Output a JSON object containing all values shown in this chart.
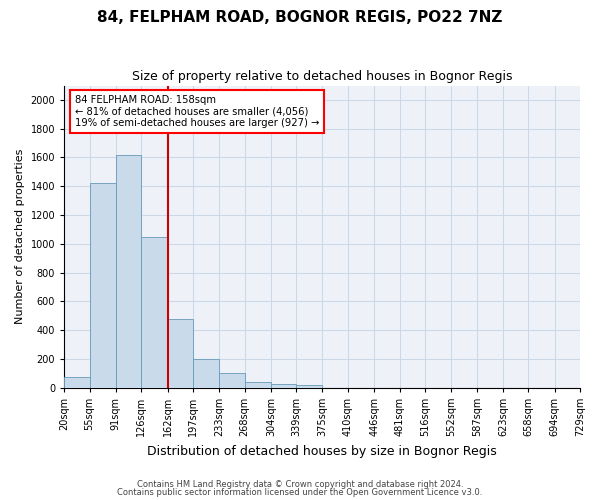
{
  "title": "84, FELPHAM ROAD, BOGNOR REGIS, PO22 7NZ",
  "subtitle": "Size of property relative to detached houses in Bognor Regis",
  "xlabel": "Distribution of detached houses by size in Bognor Regis",
  "ylabel": "Number of detached properties",
  "footnote1": "Contains HM Land Registry data © Crown copyright and database right 2024.",
  "footnote2": "Contains public sector information licensed under the Open Government Licence v3.0.",
  "annotation_line1": "84 FELPHAM ROAD: 158sqm",
  "annotation_line2": "← 81% of detached houses are smaller (4,056)",
  "annotation_line3": "19% of semi-detached houses are larger (927) →",
  "bins": [
    20,
    55,
    91,
    126,
    162,
    197,
    233,
    268,
    304,
    339,
    375,
    410,
    446,
    481,
    516,
    552,
    587,
    623,
    658,
    694,
    729
  ],
  "bin_labels": [
    "20sqm",
    "55sqm",
    "91sqm",
    "126sqm",
    "162sqm",
    "197sqm",
    "233sqm",
    "268sqm",
    "304sqm",
    "339sqm",
    "375sqm",
    "410sqm",
    "446sqm",
    "481sqm",
    "516sqm",
    "552sqm",
    "587sqm",
    "623sqm",
    "658sqm",
    "694sqm",
    "729sqm"
  ],
  "counts": [
    75,
    1420,
    1620,
    1050,
    480,
    200,
    100,
    40,
    25,
    20,
    0,
    0,
    0,
    0,
    0,
    0,
    0,
    0,
    0,
    0
  ],
  "bar_color": "#c9daea",
  "bar_edge_color": "#6699bb",
  "vline_color": "#cc0000",
  "vline_x": 162,
  "ylim": [
    0,
    2100
  ],
  "yticks": [
    0,
    200,
    400,
    600,
    800,
    1000,
    1200,
    1400,
    1600,
    1800,
    2000
  ],
  "grid_color": "#ccd8e8",
  "background_color": "#eef2f8",
  "title_fontsize": 11,
  "subtitle_fontsize": 9,
  "xlabel_fontsize": 9,
  "ylabel_fontsize": 8,
  "tick_fontsize": 7,
  "footnote_fontsize": 6
}
